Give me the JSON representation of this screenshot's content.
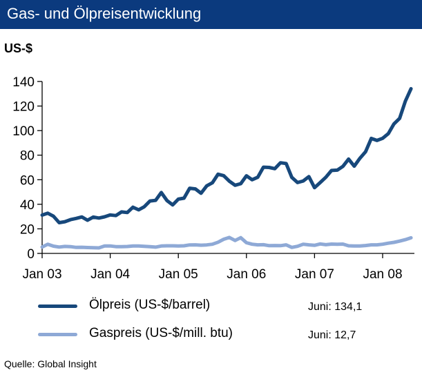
{
  "title": "Gas- und Ölpreisentwicklung",
  "source": "Quelle: Global Insight",
  "chart_data": {
    "type": "line",
    "ylabel": "US-$",
    "xlabel": "",
    "ylim": [
      0,
      140
    ],
    "yticks": [
      0,
      20,
      40,
      60,
      80,
      100,
      120,
      140
    ],
    "xlim": [
      2003.0,
      2008.4167
    ],
    "xticks": [
      {
        "label": "Jan 03",
        "value": 2003.0
      },
      {
        "label": "Jan 04",
        "value": 2004.0
      },
      {
        "label": "Jan 05",
        "value": 2005.0
      },
      {
        "label": "Jan 06",
        "value": 2006.0
      },
      {
        "label": "Jan 07",
        "value": 2007.0
      },
      {
        "label": "Jan 08",
        "value": 2008.0
      }
    ],
    "grid": false,
    "legend_position": "bottom",
    "series": [
      {
        "name": "Ölpreis (US-$/barrel)",
        "color": "#17487b",
        "note": "Juni: 134,1",
        "values": [
          31.2,
          32.7,
          30.3,
          25.0,
          25.8,
          27.5,
          28.5,
          29.7,
          27.0,
          29.6,
          28.8,
          29.8,
          31.3,
          30.8,
          33.8,
          33.3,
          37.6,
          35.5,
          38.0,
          42.7,
          43.2,
          49.6,
          43.0,
          39.5,
          44.2,
          45.0,
          53.1,
          52.5,
          49.0,
          55.0,
          57.5,
          64.5,
          63.3,
          58.8,
          55.5,
          56.8,
          63.2,
          60.0,
          62.0,
          70.2,
          70.0,
          69.0,
          73.8,
          73.2,
          61.9,
          57.7,
          59.0,
          62.5,
          53.5,
          57.7,
          62.0,
          67.5,
          67.8,
          70.9,
          76.8,
          71.0,
          77.5,
          82.8,
          93.6,
          92.0,
          93.7,
          97.5,
          105.5,
          110.0,
          124.0,
          134.1
        ]
      },
      {
        "name": "Gaspreis (US-$/mill. btu)",
        "color": "#8ea9d6",
        "note": "Juni: 12,7",
        "values": [
          5.2,
          7.5,
          5.9,
          5.2,
          5.7,
          5.5,
          4.9,
          5.0,
          4.8,
          4.6,
          4.5,
          6.0,
          6.1,
          5.5,
          5.5,
          5.6,
          6.1,
          6.0,
          5.8,
          5.5,
          5.1,
          6.0,
          6.2,
          6.2,
          6.1,
          6.2,
          6.9,
          7.0,
          6.7,
          6.9,
          7.5,
          9.1,
          11.5,
          13.0,
          10.5,
          12.8,
          8.7,
          7.5,
          7.0,
          7.1,
          6.3,
          6.4,
          6.3,
          7.0,
          4.9,
          5.8,
          7.5,
          7.0,
          6.6,
          7.7,
          7.1,
          7.6,
          7.5,
          7.6,
          6.2,
          6.0,
          6.1,
          6.4,
          7.0,
          7.0,
          7.5,
          8.3,
          9.0,
          10.0,
          11.2,
          12.7
        ]
      }
    ]
  },
  "legend": [
    {
      "label": "Ölpreis (US-$/barrel)",
      "note": "Juni: 134,1"
    },
    {
      "label": "Gaspreis (US-$/mill. btu)",
      "note": "Juni: 12,7"
    }
  ]
}
